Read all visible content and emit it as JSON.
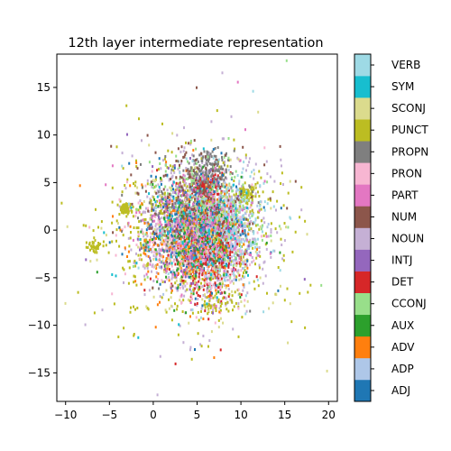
{
  "chart_data": {
    "type": "scatter",
    "title": "12th layer intermediate representation",
    "xlabel": "",
    "ylabel": "",
    "xlim": [
      -11.0,
      21.0
    ],
    "ylim": [
      -18.0,
      18.5
    ],
    "xticks": [
      -10,
      -5,
      0,
      5,
      10,
      15,
      20
    ],
    "yticks": [
      -15,
      -10,
      -5,
      0,
      5,
      10,
      15
    ],
    "grid": false,
    "colorbar": {
      "position": "right",
      "categories": [
        "ADJ",
        "ADP",
        "ADV",
        "AUX",
        "CCONJ",
        "DET",
        "INTJ",
        "NOUN",
        "NUM",
        "PART",
        "PRON",
        "PROPN",
        "PUNCT",
        "SCONJ",
        "SYM",
        "VERB"
      ],
      "colors": [
        "#1f77b4",
        "#aec7e8",
        "#ff7f0e",
        "#2ca02c",
        "#98df8a",
        "#d62728",
        "#9467bd",
        "#c5b0d5",
        "#8c564b",
        "#e377c2",
        "#f7b6d2",
        "#7f7f7f",
        "#bcbd22",
        "#dbdb8d",
        "#17becf",
        "#9edae5"
      ]
    },
    "point_count": 6000,
    "marker": "point",
    "clusters": [
      {
        "category": "NOUN",
        "center": [
          5.5,
          0.0
        ],
        "spread": [
          3.0,
          3.0
        ],
        "share": 0.25
      },
      {
        "category": "ADP",
        "center": [
          7.5,
          0.0
        ],
        "spread": [
          1.5,
          2.0
        ],
        "share": 0.11
      },
      {
        "category": "DET",
        "center": [
          6.0,
          -2.5
        ],
        "spread": [
          1.5,
          2.0
        ],
        "share": 0.08
      },
      {
        "category": "DET",
        "center": [
          6.0,
          4.5
        ],
        "spread": [
          0.7,
          0.6
        ],
        "share": 0.03
      },
      {
        "category": "PUNCT",
        "center": [
          4.5,
          -0.5
        ],
        "spread": [
          5.0,
          4.0
        ],
        "share": 0.09
      },
      {
        "category": "PUNCT",
        "center": [
          -3.2,
          2.2
        ],
        "spread": [
          0.4,
          0.3
        ],
        "share": 0.012
      },
      {
        "category": "PUNCT",
        "center": [
          10.7,
          3.8
        ],
        "spread": [
          0.5,
          0.5
        ],
        "share": 0.012
      },
      {
        "category": "PUNCT",
        "center": [
          -6.5,
          -1.7
        ],
        "spread": [
          0.4,
          0.3
        ],
        "share": 0.006
      },
      {
        "category": "PUNCT",
        "center": [
          7.0,
          -8.0
        ],
        "spread": [
          1.0,
          0.5
        ],
        "share": 0.006
      },
      {
        "category": "PRON",
        "center": [
          4.5,
          -1.0
        ],
        "spread": [
          3.0,
          3.0
        ],
        "share": 0.07
      },
      {
        "category": "PROPN",
        "center": [
          6.5,
          6.5
        ],
        "spread": [
          1.0,
          1.0
        ],
        "share": 0.025
      },
      {
        "category": "PROPN",
        "center": [
          4.0,
          1.5
        ],
        "spread": [
          2.5,
          2.5
        ],
        "share": 0.03
      },
      {
        "category": "VERB",
        "center": [
          7.5,
          0.0
        ],
        "spread": [
          3.0,
          3.0
        ],
        "share": 0.04
      },
      {
        "category": "ADJ",
        "center": [
          5.0,
          0.0
        ],
        "spread": [
          3.0,
          3.0
        ],
        "share": 0.04
      },
      {
        "category": "AUX",
        "center": [
          5.0,
          -1.0
        ],
        "spread": [
          2.5,
          2.5
        ],
        "share": 0.03
      },
      {
        "category": "ADV",
        "center": [
          4.0,
          -1.5
        ],
        "spread": [
          3.0,
          3.0
        ],
        "share": 0.03
      },
      {
        "category": "CCONJ",
        "center": [
          6.0,
          2.0
        ],
        "spread": [
          3.0,
          3.0
        ],
        "share": 0.03
      },
      {
        "category": "SCONJ",
        "center": [
          5.0,
          -1.0
        ],
        "spread": [
          4.5,
          4.0
        ],
        "share": 0.03
      },
      {
        "category": "INTJ",
        "center": [
          4.0,
          0.0
        ],
        "spread": [
          3.0,
          3.0
        ],
        "share": 0.02
      },
      {
        "category": "NUM",
        "center": [
          5.0,
          3.0
        ],
        "spread": [
          3.0,
          3.0
        ],
        "share": 0.03
      },
      {
        "category": "PART",
        "center": [
          5.0,
          0.0
        ],
        "spread": [
          3.0,
          3.0
        ],
        "share": 0.03
      },
      {
        "category": "SYM",
        "center": [
          5.0,
          0.0
        ],
        "spread": [
          3.0,
          3.0
        ],
        "share": 0.015
      }
    ]
  }
}
